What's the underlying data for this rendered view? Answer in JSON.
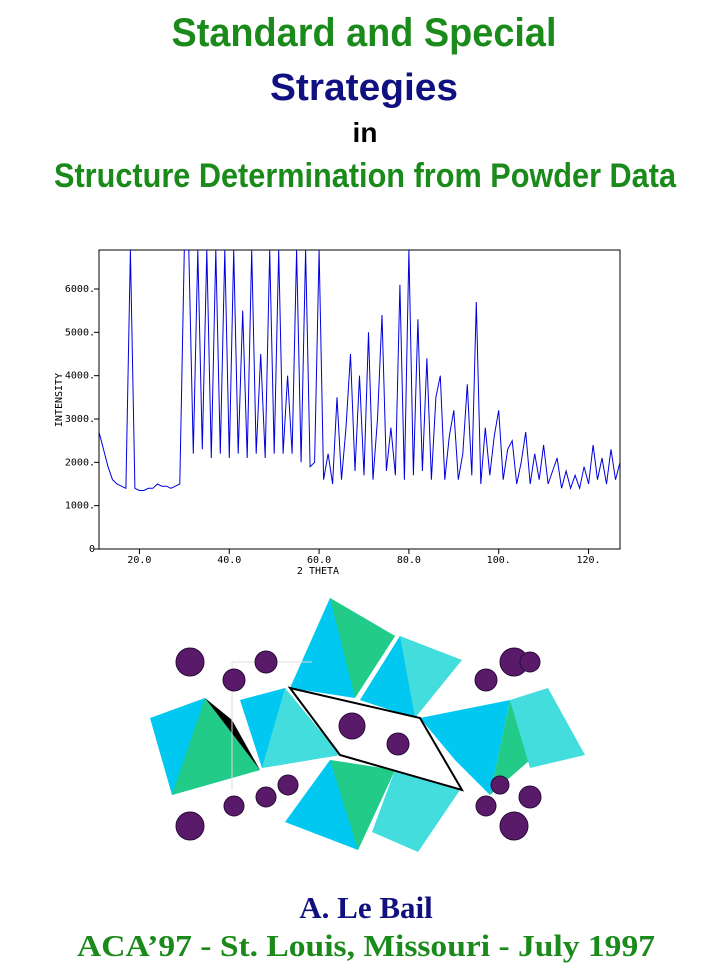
{
  "header": {
    "line1": "Standard and Special",
    "line2": "Strategies",
    "line3": "in",
    "line4": "Structure Determination from Powder Data"
  },
  "chart_data": {
    "type": "line",
    "xlabel": "2 THETA",
    "ylabel": "INTENSITY",
    "color": "#0000dd",
    "xlim": [
      11,
      127
    ],
    "ylim": [
      0,
      6900
    ],
    "xticks": [
      {
        "value": 20,
        "label": "20.0"
      },
      {
        "value": 40,
        "label": "40.0"
      },
      {
        "value": 60,
        "label": "60.0"
      },
      {
        "value": 80,
        "label": "80.0"
      },
      {
        "value": 100,
        "label": "100."
      },
      {
        "value": 120,
        "label": "120."
      }
    ],
    "yticks": [
      0,
      {
        "value": 1000,
        "label": "1000."
      },
      {
        "value": 2000,
        "label": "2000."
      },
      {
        "value": 3000,
        "label": "3000."
      },
      {
        "value": 4000,
        "label": "4000."
      },
      {
        "value": 5000,
        "label": "5000."
      },
      {
        "value": 6000,
        "label": "6000."
      }
    ],
    "x": [
      11,
      12,
      13,
      14,
      15,
      16,
      17,
      18,
      19,
      20,
      21,
      22,
      23,
      24,
      25,
      26,
      27,
      28,
      29,
      30,
      31,
      32,
      33,
      34,
      35,
      36,
      37,
      38,
      39,
      40,
      41,
      42,
      43,
      44,
      45,
      46,
      47,
      48,
      49,
      50,
      51,
      52,
      53,
      54,
      55,
      56,
      57,
      58,
      59,
      60,
      61,
      62,
      63,
      64,
      65,
      66,
      67,
      68,
      69,
      70,
      71,
      72,
      73,
      74,
      75,
      76,
      77,
      78,
      79,
      80,
      81,
      82,
      83,
      84,
      85,
      86,
      87,
      88,
      89,
      90,
      91,
      92,
      93,
      94,
      95,
      96,
      97,
      98,
      99,
      100,
      101,
      102,
      103,
      104,
      105,
      106,
      107,
      108,
      109,
      110,
      111,
      112,
      113,
      114,
      115,
      116,
      117,
      118,
      119,
      120,
      121,
      122,
      123,
      124,
      125,
      126,
      127
    ],
    "values": [
      2700,
      2300,
      1900,
      1600,
      1500,
      1450,
      1400,
      6900,
      1400,
      1350,
      1350,
      1400,
      1400,
      1500,
      1450,
      1450,
      1400,
      1450,
      1500,
      6900,
      6900,
      2200,
      6900,
      2300,
      6900,
      2100,
      6900,
      2200,
      6900,
      2100,
      6900,
      2200,
      5500,
      2100,
      6900,
      2200,
      4500,
      2100,
      6900,
      2200,
      6900,
      2200,
      4000,
      2200,
      6900,
      2000,
      6900,
      1900,
      2000,
      6900,
      1600,
      2200,
      1500,
      3500,
      1600,
      2800,
      4500,
      1800,
      4000,
      1700,
      5000,
      1600,
      3000,
      5400,
      1800,
      2800,
      1700,
      6100,
      1600,
      6900,
      1700,
      5300,
      1800,
      4400,
      1600,
      3500,
      4000,
      1600,
      2600,
      3200,
      1600,
      2200,
      3800,
      1700,
      5700,
      1500,
      2800,
      1700,
      2600,
      3200,
      1600,
      2300,
      2500,
      1500,
      2000,
      2700,
      1500,
      2200,
      1600,
      2400,
      1500,
      1800,
      2100,
      1400,
      1800,
      1400,
      1700,
      1400,
      1900,
      1500,
      2400,
      1600,
      2100,
      1500,
      2300,
      1600,
      2000
    ]
  },
  "footer": {
    "author": "A. Le Bail",
    "event": "ACA’97 - St. Louis, Missouri - July 1997"
  }
}
